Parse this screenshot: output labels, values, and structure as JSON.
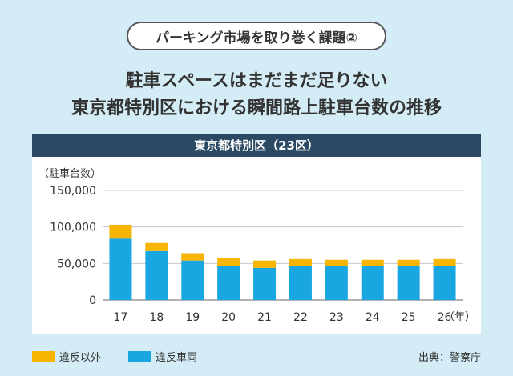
{
  "header": {
    "pill": "パーキング市場を取り巻く課題②",
    "headline_line1": "駐車スペースはまだまだ足りない",
    "headline_line2": "東京都特別区における瞬間路上駐車台数の推移"
  },
  "chart_data": {
    "type": "bar",
    "stacked": true,
    "title": "東京都特別区（23区）",
    "ylabel": "（駐車台数）",
    "xunit": "（年）",
    "categories": [
      "17",
      "18",
      "19",
      "20",
      "21",
      "22",
      "23",
      "24",
      "25",
      "26"
    ],
    "yticks": [
      "0",
      "50,000",
      "100,000",
      "150,000"
    ],
    "ylim": [
      0,
      150000
    ],
    "grid": true,
    "series": [
      {
        "name": "違反車両",
        "color": "#1aa6e0",
        "values": [
          84000,
          67000,
          54000,
          47000,
          44000,
          46000,
          46000,
          46000,
          46000,
          46000
        ]
      },
      {
        "name": "違反以外",
        "color": "#f7b500",
        "values": [
          19000,
          11000,
          10000,
          10000,
          10000,
          10000,
          9000,
          9000,
          9000,
          10000
        ]
      }
    ],
    "legend_position": "bottom-left"
  },
  "legend": [
    {
      "label": "違反以外",
      "color": "#f7b500"
    },
    {
      "label": "違反車両",
      "color": "#1aa6e0"
    }
  ],
  "source": "出典：警察庁"
}
